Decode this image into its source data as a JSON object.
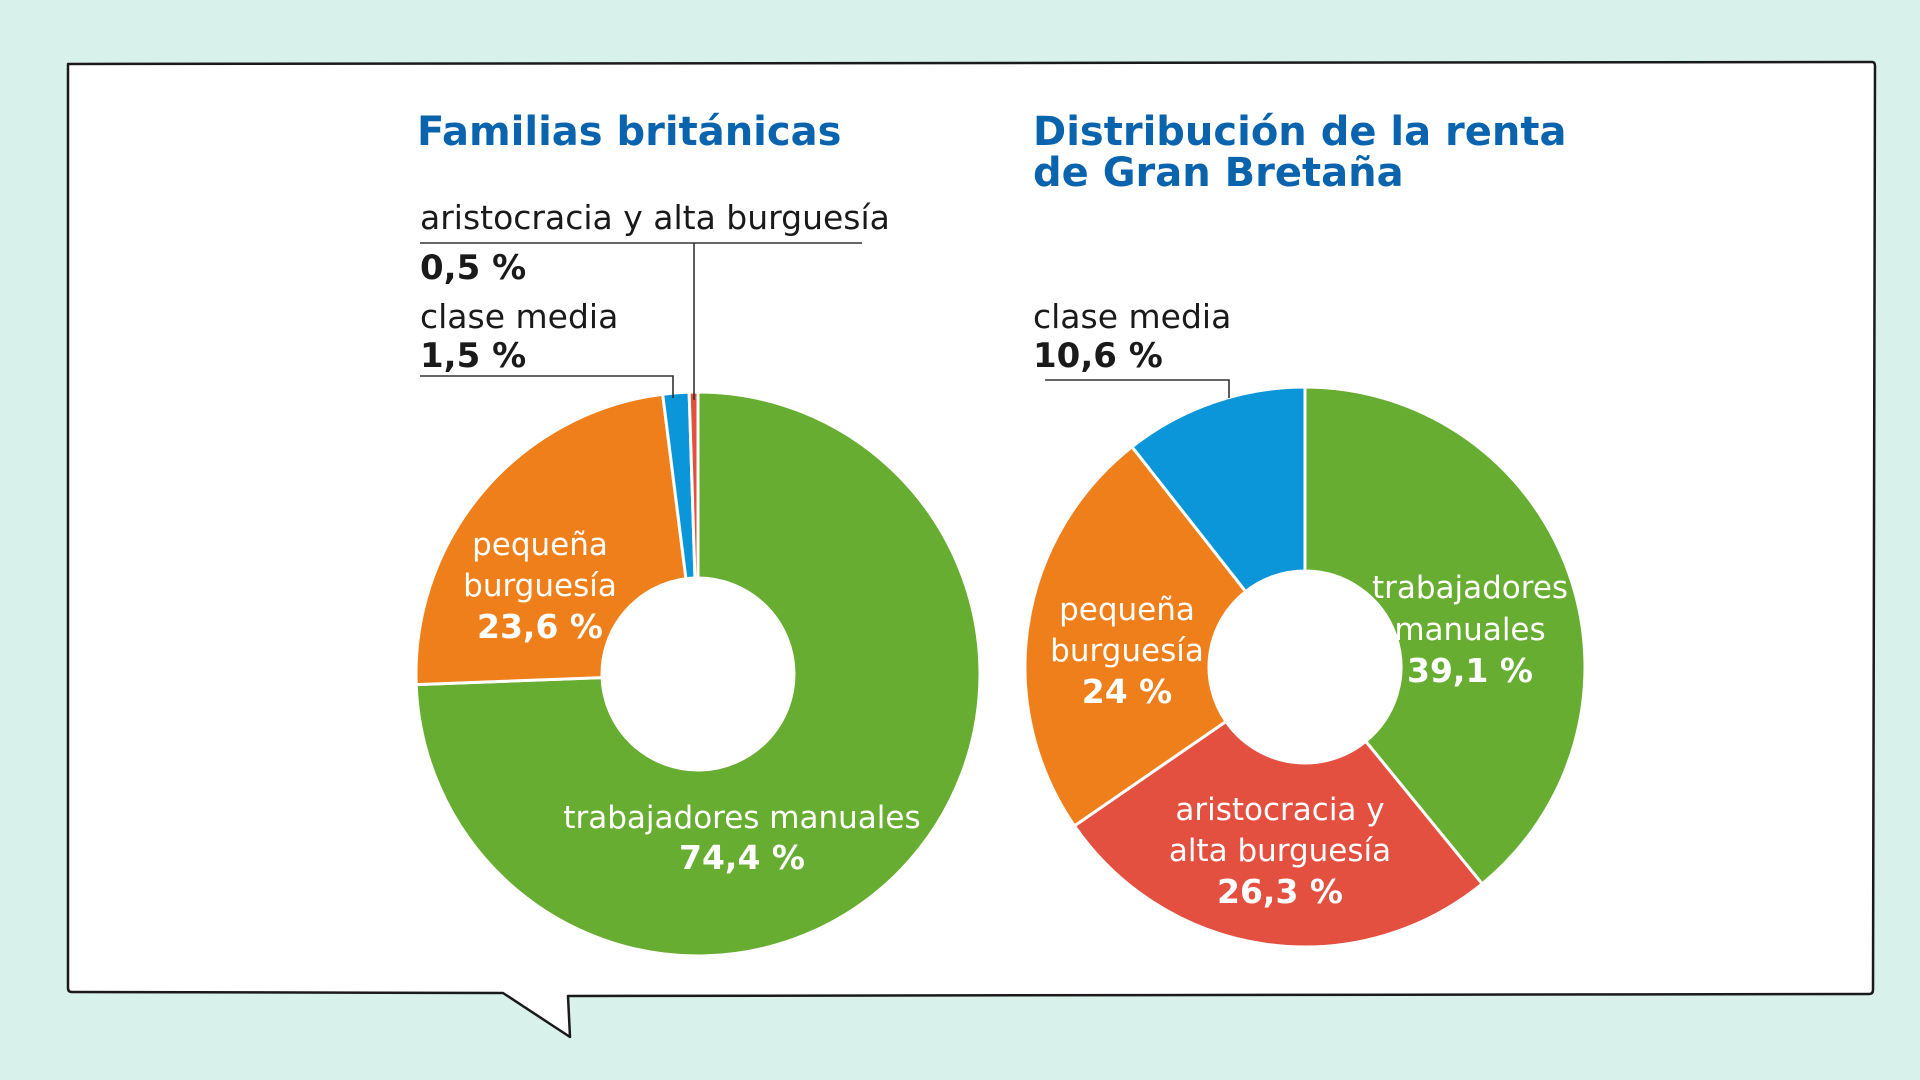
{
  "colors": {
    "background": "#d8f1ea",
    "panel": "#ffffff",
    "title": "#0a63ad",
    "trabajadores": "#66ad31",
    "pequena": "#ef7f1a",
    "clase_media": "#0a96d9",
    "aristocracia": "#e4503f"
  },
  "chart_data": [
    {
      "type": "donut",
      "title": "Familias británicas",
      "slices": [
        {
          "key": "trabajadores",
          "value": 74.4,
          "label_lines": [
            "trabajadores manuales"
          ],
          "value_text": "74,4 %",
          "color": "#66ad31"
        },
        {
          "key": "pequena",
          "value": 23.6,
          "label_lines": [
            "pequeña",
            "burguesía"
          ],
          "value_text": "23,6 %",
          "color": "#ef7f1a"
        },
        {
          "key": "clase_media",
          "value": 1.5,
          "label_lines": [
            "clase media"
          ],
          "value_text": "1,5 %",
          "color": "#0a96d9"
        },
        {
          "key": "aristocracia",
          "value": 0.5,
          "label_lines": [
            "aristocracia y alta burguesía"
          ],
          "value_text": "0,5 %",
          "color": "#e4503f"
        }
      ]
    },
    {
      "type": "donut",
      "title_lines": [
        "Distribución de la renta",
        "de Gran Bretaña"
      ],
      "slices": [
        {
          "key": "trabajadores",
          "value": 39.1,
          "label_lines": [
            "trabajadores",
            "manuales"
          ],
          "value_text": "39,1 %",
          "color": "#66ad31"
        },
        {
          "key": "aristocracia",
          "value": 26.3,
          "label_lines": [
            "aristocracia y",
            "alta burguesía"
          ],
          "value_text": "26,3 %",
          "color": "#e4503f"
        },
        {
          "key": "pequena",
          "value": 24,
          "label_lines": [
            "pequeña",
            "burguesía"
          ],
          "value_text": "24 %",
          "color": "#ef7f1a"
        },
        {
          "key": "clase_media",
          "value": 10.6,
          "label_lines": [
            "clase media"
          ],
          "value_text": "10,6 %",
          "color": "#0a96d9"
        }
      ]
    }
  ]
}
